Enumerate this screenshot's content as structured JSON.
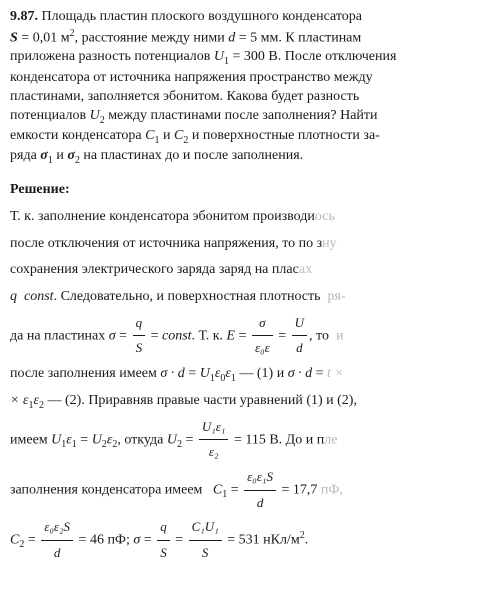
{
  "problem": {
    "number": "9.87.",
    "line1_a": "Площадь пластин плоского воздушного конденсатора",
    "S_label": "S",
    "S_val": " = 0,01 м",
    "S_sup": "2",
    "line2_a": ", расстояние между ними ",
    "d_label": "d",
    "d_val": " = 5 мм. К пластинам",
    "line3": "приложена разность потенциалов ",
    "U1_label": "U",
    "U1_sub": "1",
    "U1_val": " = 300 В. После отключения",
    "line4": "конденсатора от источника напряжения пространство между",
    "line5": "пластинами, заполняется эбонитом. Какова будет разность",
    "line6a": "потенциалов ",
    "U2_label": "U",
    "U2_sub": "2",
    "line6b": " между пластинами после заполнения? Найти",
    "line7a": "емкости конденсатора ",
    "C1_label": "C",
    "C1_sub": "1",
    "and1": " и ",
    "C2_label": "C",
    "C2_sub": "2",
    "line7b": " и поверхностные плотности за-",
    "line8a": "ряда ",
    "sig1_label": "σ",
    "sig1_sub": "1",
    "and2": " и ",
    "sig2_label": "σ",
    "sig2_sub": "2",
    "line8b": " на пластинах до и после заполнения."
  },
  "solution_title": "Решение:",
  "solution": {
    "l1": "Т. к. заполнение конденсатора эбонитом производи",
    "l1_faded": "ось",
    "l2": "после отключения от источника напряжения, то по з",
    "l2_faded": "ну",
    "l3": "сохранения электрического заряда заряд на плас",
    "l3_faded": "ах",
    "l4_q": "q",
    "l4_const": "const",
    "l4_a": ". Следовательно, и поверхностная плотность",
    "l4_faded": "ря-",
    "l5_a": "да на пластинах ",
    "l5_sig": "σ",
    "l5_eq1": " = ",
    "f1_num": "q",
    "f1_den": "S",
    "l5_eq2": " = ",
    "l5_const": "const",
    "l5_b": ". Т. к. ",
    "l5_E": "E",
    "l5_eq3": " = ",
    "f2_num": "σ",
    "f2_den": "ε₀ε",
    "l5_eq4": " = ",
    "f3_num": "U",
    "f3_den": "d",
    "l5_c": ", то",
    "l5_faded": "и",
    "l6_a": "после заполнения имеем ",
    "l6_sd": "σ · d",
    "l6_eq": " = ",
    "l6_U1": "U",
    "l6_U1sub": "1",
    "l6_e0": "ε",
    "l6_e0sub": "0",
    "l6_e1": "ε",
    "l6_e1sub": "1",
    "l6_b": " — (1) и ",
    "l6_sd2": "σ · d",
    "l6_eq2": " = ",
    "l6_faded": "t ×",
    "l7_ee": "× ε",
    "l7_sub1": "1",
    "l7_e2": "ε",
    "l7_sub2": "2",
    "l7_a": " — (2). Приравняв правые части уравнений (1) и (2),",
    "l8_a": "имеем ",
    "l8_U1e1": "U",
    "l8_U1sub": "1",
    "l8_e1": "ε",
    "l8_e1sub": "1",
    "l8_dot": " = ",
    "l8_U2e2": "U",
    "l8_U2sub": "2",
    "l8_e2": "ε",
    "l8_e2sub": "2",
    "l8_b": ", откуда ",
    "l8_U2": "U",
    "l8_U2sub2": "2",
    "l8_eq": " = ",
    "f4_num": "U₁ε₁",
    "f4_den": "ε₂",
    "l8_val": " = 115 В. До и п",
    "l8_faded": "ле",
    "l9_a": "заполнения конденсатора имеем ",
    "l9_C1": "C",
    "l9_C1sub": "1",
    "l9_eq": " = ",
    "f5_num": "ε₀ε₁S",
    "f5_den": "d",
    "l9_val": " = 17,7",
    "l9_faded": "пФ,",
    "l10_C2": "C",
    "l10_C2sub": "2",
    "l10_eq1": " = ",
    "f6_num": "ε₀ε₂S",
    "f6_den": "d",
    "l10_val1": " = 46 пФ; ",
    "l10_sig": "σ",
    "l10_eq2": " = ",
    "f7_num": "q",
    "f7_den": "S",
    "l10_eq3": " = ",
    "f8_num": "C₁U₁",
    "f8_den": "S",
    "l10_val2": " = 531 нКл/м",
    "l10_sup": "2",
    "l10_dot": "."
  }
}
